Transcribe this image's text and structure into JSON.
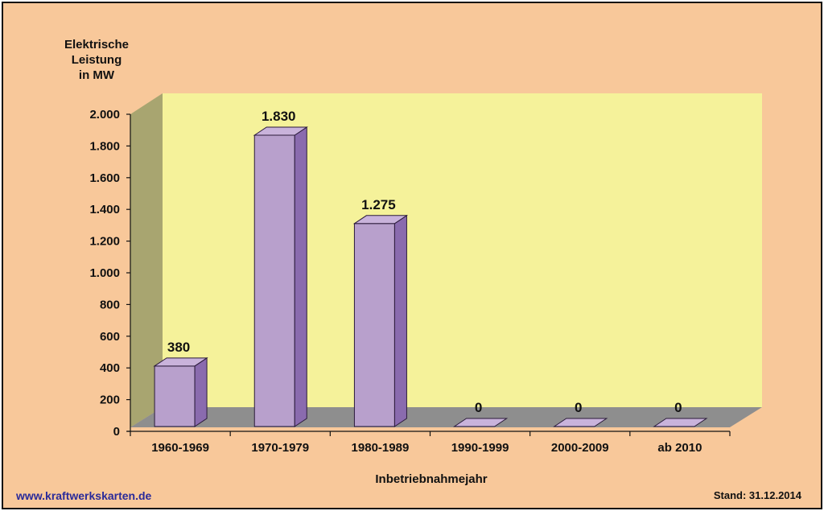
{
  "chart_data": {
    "type": "bar",
    "ylabel_lines": [
      "Elektrische",
      "Leistung",
      "in MW"
    ],
    "xlabel": "Inbetriebnahmejahr",
    "categories": [
      "1960-1969",
      "1970-1979",
      "1980-1989",
      "1990-1999",
      "2000-2009",
      "ab 2010"
    ],
    "values": [
      380,
      1830,
      1275,
      0,
      0,
      0
    ],
    "value_labels": [
      "380",
      "1.830",
      "1.275",
      "0",
      "0",
      "0"
    ],
    "ylim": [
      0,
      2000
    ],
    "yticks": [
      0,
      200,
      400,
      600,
      800,
      1000,
      1200,
      1400,
      1600,
      1800,
      2000
    ],
    "ytick_labels": [
      "0",
      "200",
      "400",
      "600",
      "800",
      "1.000",
      "1.200",
      "1.400",
      "1.600",
      "1.800",
      "2.000"
    ],
    "grid": false,
    "colors": {
      "bar_front": "#B8A0CC",
      "bar_side": "#8A6BAE",
      "bar_top": "#C9B3DB",
      "back_wall": "#F5F29A",
      "side_wall": "#A8A570",
      "floor": "#8E8E8E",
      "background": "#F8C89A"
    }
  },
  "footer": {
    "url": "www.kraftwerkskarten.de",
    "stand": "Stand: 31.12.2014"
  }
}
